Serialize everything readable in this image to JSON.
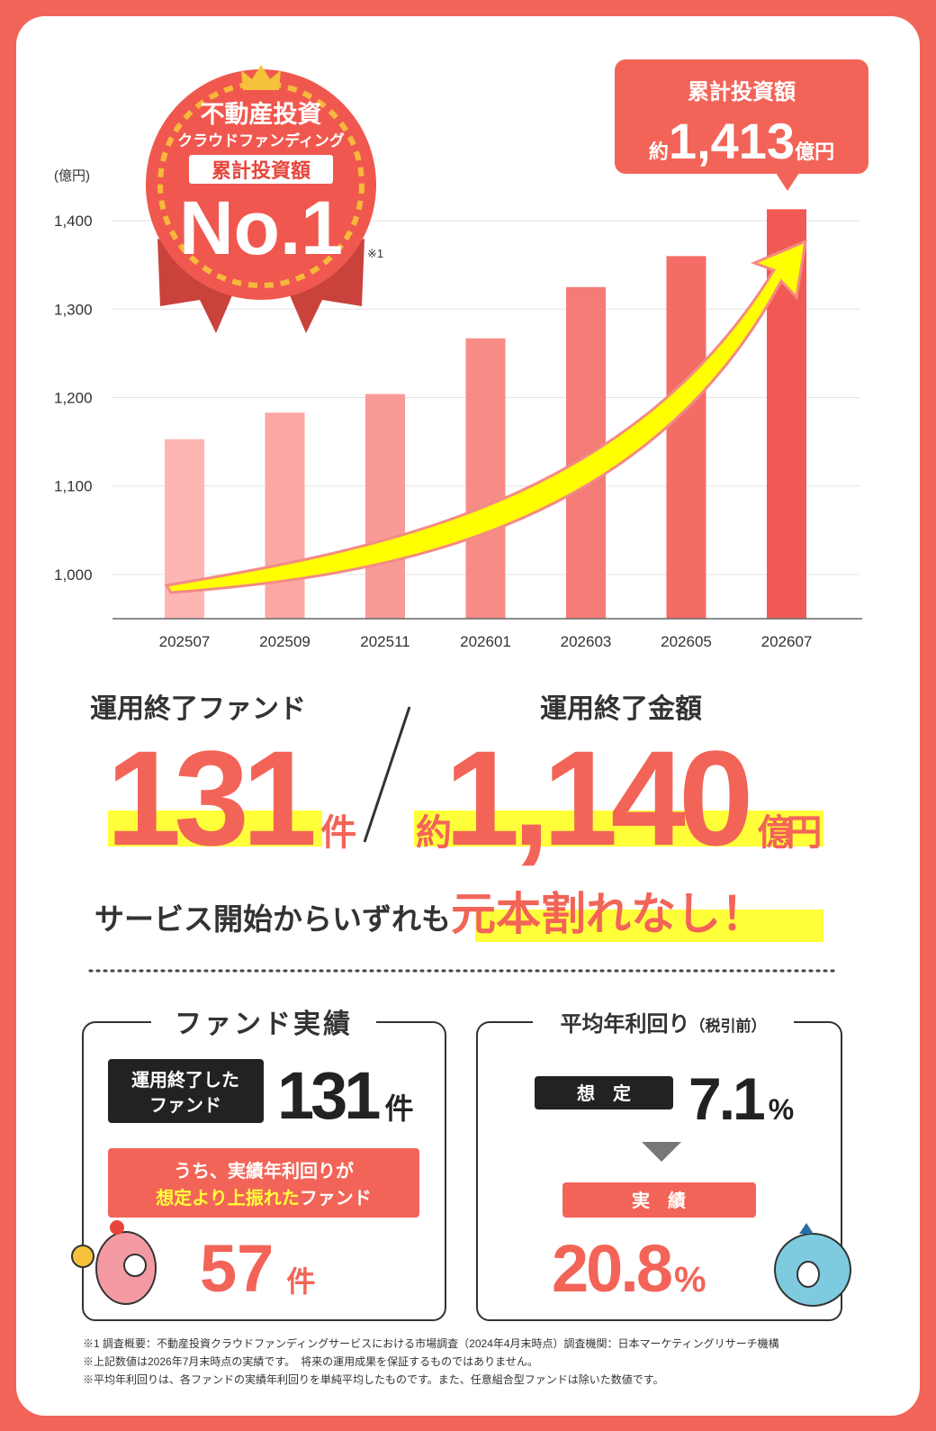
{
  "chart_data": {
    "type": "bar",
    "y_unit": "(億円)",
    "categories": [
      "202507",
      "202509",
      "202511",
      "202601",
      "202603",
      "202605",
      "202607"
    ],
    "values": [
      1153,
      1183,
      1204,
      1267,
      1325,
      1360,
      1413
    ],
    "colors": [
      "#fdb6b4",
      "#fba8a5",
      "#f99a96",
      "#f78b86",
      "#f57c76",
      "#f36c66",
      "#f15a54"
    ],
    "ylim": [
      950,
      1450
    ],
    "yticks": [
      {
        "value": 1000,
        "label": "1,000"
      },
      {
        "value": 1100,
        "label": "1,100"
      },
      {
        "value": 1200,
        "label": "1,200"
      },
      {
        "value": 1300,
        "label": "1,300"
      },
      {
        "value": 1400,
        "label": "1,400"
      }
    ],
    "grid": true
  },
  "badge": {
    "line1": "不動産投資",
    "line2": "クラウドファンディング",
    "line3": "累計投資額",
    "rank": "No.1",
    "note": "※1"
  },
  "callout": {
    "title": "累計投資額",
    "prefix": "約",
    "value": "1,413",
    "unit": "億円"
  },
  "stats": {
    "funds_label": "運用終了ファンド",
    "funds_value": "131",
    "funds_unit": "件",
    "amount_label": "運用終了金額",
    "amount_prefix": "約",
    "amount_value": "1,140",
    "amount_unit": "億円",
    "claim_lead": "サービス開始からいずれも",
    "claim_highlight": "元本割れなし！"
  },
  "fund_panel": {
    "title": "ファンド実績",
    "box_line1": "運用終了した",
    "box_line2": "ファンド",
    "count": "131",
    "count_unit": "件",
    "sub_line1": "うち、実績年利回りが",
    "sub_line2_highlight": "想定より上振れた",
    "sub_line2_rest": "ファンド",
    "sub_count": "57",
    "sub_unit": "件"
  },
  "yield_panel": {
    "title": "平均年利回り",
    "title_note": "（税引前）",
    "expected_label": "想　定",
    "expected_value": "7.1",
    "expected_unit": "%",
    "actual_label": "実　績",
    "actual_value": "20.8",
    "actual_unit": "%"
  },
  "footnotes": [
    "※1 調査概要：不動産投資クラウドファンディングサービスにおける市場調査（2024年4月末時点）調査機関：日本マーケティングリサーチ機構",
    "※上記数値は2026年7月末時点の実績です。　将来の運用成果を保証するものではありません。",
    "※平均年利回りは、各ファンドの実績年利回りを単純平均したものです。また、任意組合型ファンドは除いた数値です。"
  ]
}
